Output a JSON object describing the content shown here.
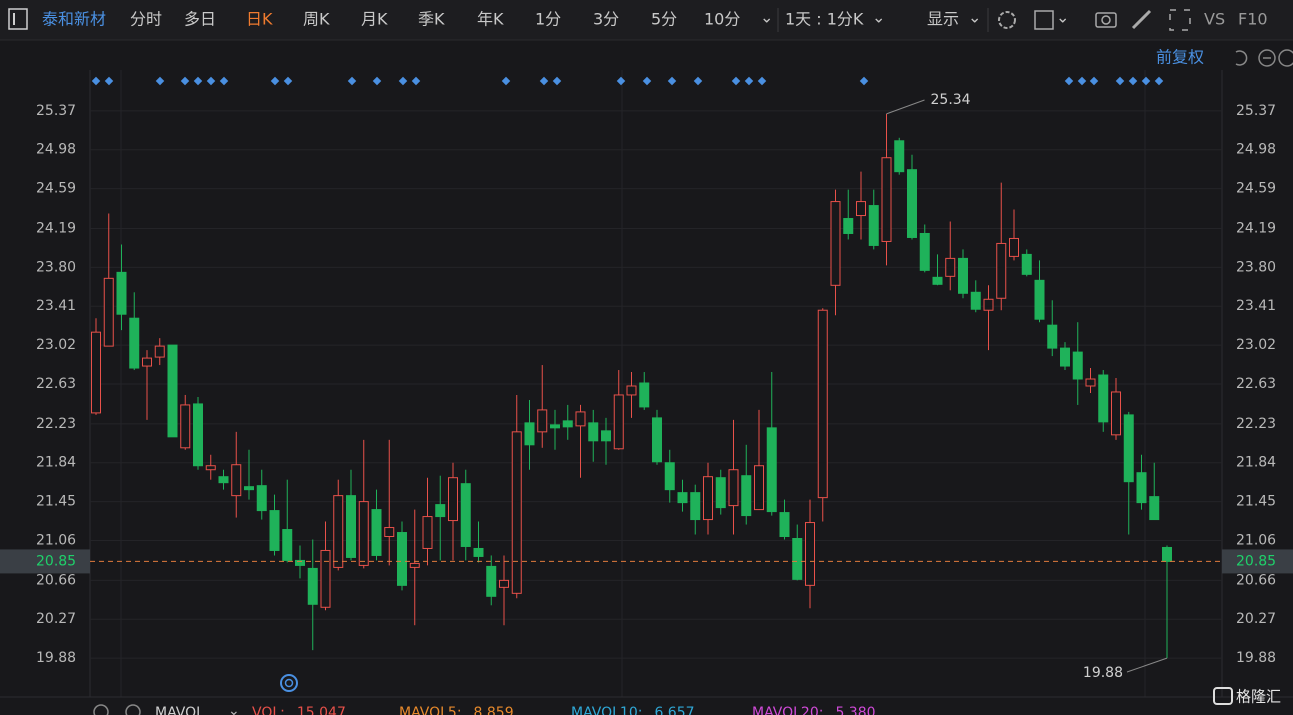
{
  "toolbar": {
    "stock": "泰和新材",
    "periods": [
      "分时",
      "多日",
      "日K",
      "周K",
      "月K",
      "季K",
      "年K",
      "1分",
      "3分",
      "5分",
      "10分"
    ],
    "interval": "1天 : 1分K",
    "display": "显示",
    "vs": "VS",
    "f10": "F10"
  },
  "adjust": "前复权",
  "chart_data": {
    "type": "candlestick",
    "open": [
      22.34,
      23.01,
      23.75,
      23.29,
      22.81,
      22.9,
      23.02,
      21.99,
      22.43,
      21.77,
      21.7,
      21.51,
      21.6,
      21.61,
      21.36,
      21.17,
      20.86,
      20.78,
      20.39,
      20.79,
      21.51,
      20.81,
      21.37,
      21.1,
      21.14,
      20.79,
      20.98,
      21.42,
      21.26,
      21.63,
      20.98,
      20.8,
      20.59,
      20.53,
      22.24,
      22.15,
      22.22,
      22.26,
      22.21,
      22.24,
      22.16,
      21.98,
      22.52,
      22.64,
      22.29,
      21.84,
      21.54,
      21.54,
      21.27,
      21.69,
      21.41,
      21.71,
      21.37,
      22.19,
      21.34,
      21.08,
      20.61,
      21.49,
      23.62,
      24.29,
      24.32,
      24.42,
      24.06,
      25.07,
      24.78,
      24.14,
      23.7,
      23.71,
      23.89,
      23.55,
      23.37,
      23.49,
      23.91,
      23.93,
      23.67,
      23.22,
      22.99,
      22.95,
      22.61,
      22.72,
      22.12,
      22.32,
      21.74,
      21.5,
      20.99
    ],
    "high": [
      23.29,
      24.34,
      24.03,
      23.55,
      22.97,
      23.09,
      23.02,
      22.52,
      22.5,
      21.92,
      21.77,
      22.15,
      21.97,
      21.77,
      21.52,
      21.67,
      21.01,
      21.07,
      21.25,
      21.67,
      21.77,
      22.07,
      21.57,
      22.07,
      21.25,
      21.37,
      21.69,
      21.71,
      21.84,
      21.77,
      21.25,
      20.91,
      20.91,
      22.52,
      22.47,
      22.82,
      22.37,
      22.42,
      22.42,
      22.37,
      22.29,
      22.77,
      22.75,
      22.75,
      22.37,
      21.97,
      21.67,
      21.62,
      21.84,
      21.77,
      22.27,
      22.02,
      22.37,
      22.75,
      21.47,
      21.22,
      21.47,
      23.39,
      24.58,
      24.58,
      24.76,
      24.58,
      25.34,
      25.1,
      24.93,
      24.23,
      23.93,
      24.26,
      23.98,
      23.67,
      23.62,
      24.65,
      24.38,
      23.98,
      23.87,
      23.47,
      23.05,
      23.25,
      22.79,
      22.77,
      22.69,
      22.35,
      21.92,
      21.84,
      21.01
    ],
    "low": [
      22.32,
      23.01,
      23.17,
      22.77,
      22.27,
      22.82,
      22.1,
      21.97,
      21.77,
      21.67,
      21.57,
      21.29,
      21.47,
      21.27,
      20.91,
      20.84,
      20.68,
      19.96,
      20.36,
      20.76,
      20.86,
      20.78,
      20.86,
      20.81,
      20.56,
      20.21,
      20.81,
      20.86,
      20.86,
      20.86,
      20.84,
      20.41,
      20.21,
      20.48,
      21.77,
      21.99,
      21.97,
      22.07,
      21.69,
      21.85,
      21.82,
      21.97,
      22.29,
      22.37,
      21.82,
      21.44,
      21.35,
      21.12,
      21.12,
      21.32,
      21.12,
      21.22,
      21.37,
      21.31,
      21.07,
      20.66,
      20.38,
      21.25,
      23.32,
      24.08,
      24.08,
      23.98,
      23.82,
      24.73,
      24.08,
      23.75,
      23.62,
      23.57,
      23.49,
      23.35,
      22.97,
      23.37,
      23.87,
      23.71,
      23.25,
      22.91,
      22.77,
      22.42,
      22.54,
      22.15,
      22.07,
      21.12,
      21.37,
      21.27,
      19.88
    ],
    "close": [
      23.15,
      23.69,
      23.33,
      22.79,
      22.89,
      23.01,
      22.1,
      22.42,
      21.81,
      21.81,
      21.64,
      21.82,
      21.57,
      21.36,
      20.96,
      20.86,
      20.81,
      20.42,
      20.96,
      21.51,
      20.89,
      21.45,
      20.91,
      21.19,
      20.61,
      20.83,
      21.3,
      21.3,
      21.69,
      21.0,
      20.9,
      20.5,
      20.66,
      22.15,
      22.02,
      22.37,
      22.19,
      22.2,
      22.35,
      22.06,
      22.06,
      22.52,
      22.61,
      22.4,
      21.85,
      21.57,
      21.44,
      21.27,
      21.7,
      21.39,
      21.77,
      21.31,
      21.81,
      21.35,
      21.1,
      20.67,
      21.24,
      23.37,
      24.46,
      24.14,
      24.46,
      24.02,
      24.9,
      24.76,
      24.1,
      23.77,
      23.63,
      23.89,
      23.54,
      23.38,
      23.48,
      24.04,
      24.09,
      23.73,
      23.28,
      22.99,
      22.81,
      22.68,
      22.68,
      22.25,
      22.55,
      21.65,
      21.44,
      21.27,
      20.85
    ],
    "up_color": "#e8514a",
    "down_color": "#1fb25a",
    "price_line_color": "#e07a3c",
    "ylim": [
      19.51,
      25.78
    ],
    "yticks": [
      25.37,
      24.98,
      24.59,
      24.19,
      {
        "value": 23.8,
        "label": "23.80"
      },
      23.41,
      23.02,
      22.63,
      22.23,
      21.84,
      21.45,
      21.06,
      20.66,
      20.27,
      19.88
    ],
    "grid": true
  },
  "volume_legend": {
    "title": "MAVOL",
    "items": [
      {
        "label": "VOL:",
        "value": "15,047",
        "color": "#e8514a"
      },
      {
        "label": "MAVOL5:",
        "value": "8,859",
        "color": "#e88a2c"
      },
      {
        "label": "MAVOL10:",
        "value": "6,657",
        "color": "#2fa9d8"
      },
      {
        "label": "MAVOL20:",
        "value": "5,380",
        "color": "#d04ad8"
      }
    ]
  },
  "watermark": "格隆汇"
}
